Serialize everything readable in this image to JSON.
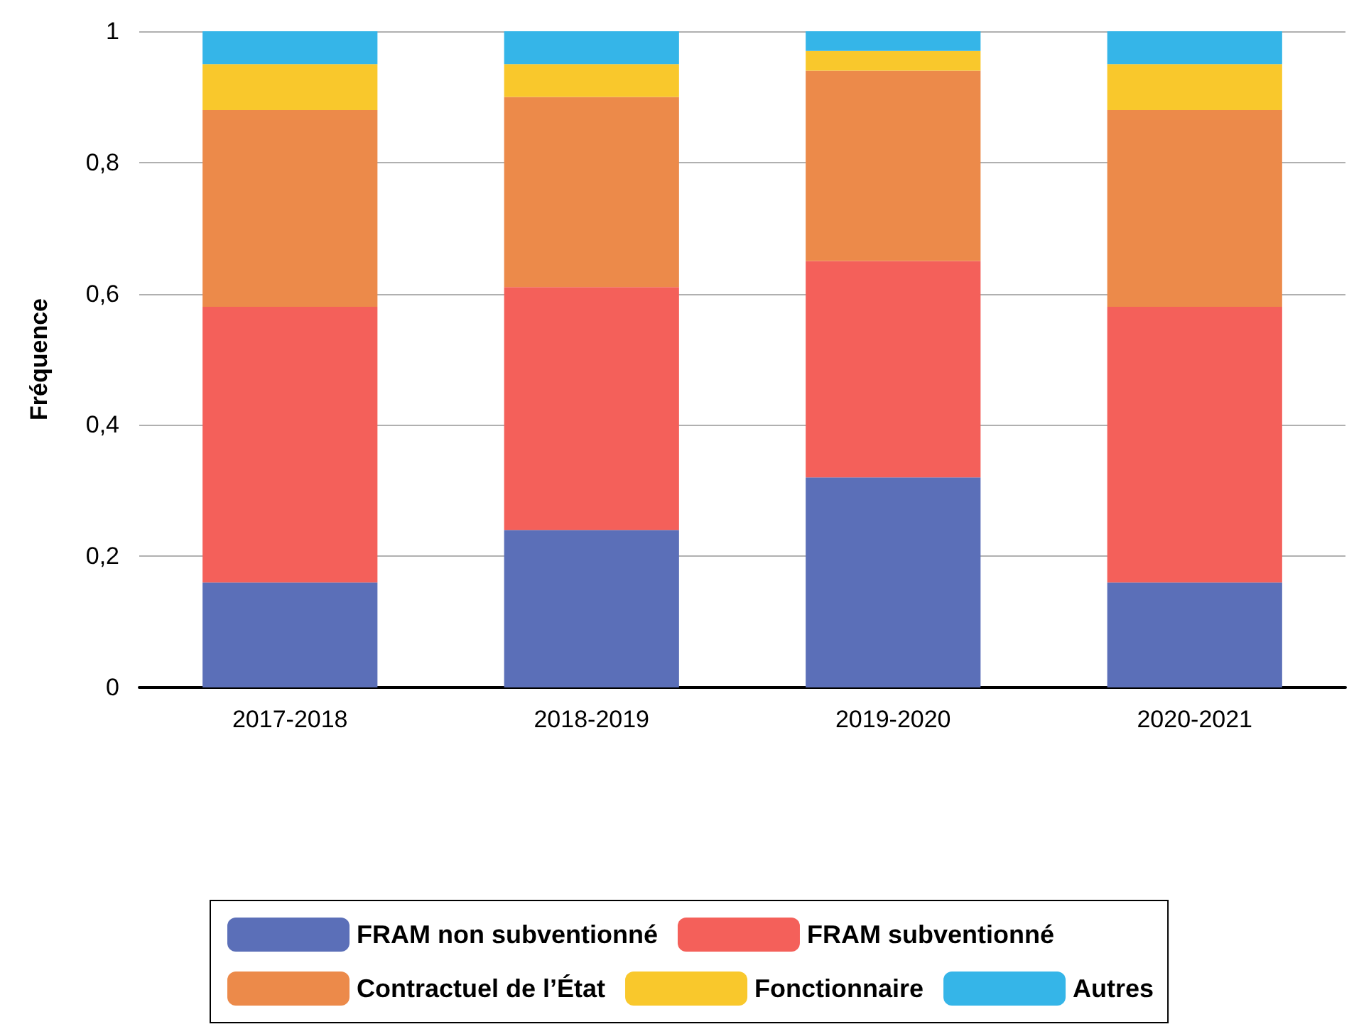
{
  "chart_data": {
    "type": "bar",
    "stacked": true,
    "ylabel": "Fréquence",
    "categories": [
      "2017-2018",
      "2018-2019",
      "2019-2020",
      "2020-2021"
    ],
    "series": [
      {
        "name": "FRAM non subventionné",
        "color": "#5b6fb8",
        "values": [
          0.16,
          0.24,
          0.32,
          0.16
        ]
      },
      {
        "name": "FRAM subventionné",
        "color": "#f4605a",
        "values": [
          0.42,
          0.37,
          0.33,
          0.42
        ]
      },
      {
        "name": "Contractuel de l’État",
        "color": "#ec8a4a",
        "values": [
          0.3,
          0.29,
          0.29,
          0.3
        ]
      },
      {
        "name": "Fonctionnaire",
        "color": "#f9c82c",
        "values": [
          0.07,
          0.05,
          0.03,
          0.07
        ]
      },
      {
        "name": "Autres",
        "color": "#35b5e8",
        "values": [
          0.05,
          0.05,
          0.03,
          0.05
        ]
      }
    ],
    "ylim": [
      0,
      1
    ],
    "yticks": [
      0,
      {
        "value": 0.2,
        "label": "0,2"
      },
      {
        "value": 0.4,
        "label": "0,4"
      },
      {
        "value": 0.6,
        "label": "0,6"
      },
      {
        "value": 0.8,
        "label": "0,8"
      },
      1
    ],
    "grid": "y",
    "legend": "bottom"
  }
}
